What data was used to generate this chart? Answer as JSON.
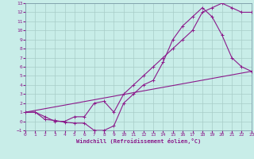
{
  "background_color": "#c8ede8",
  "grid_color": "#a8ccc8",
  "line_color": "#8b1a8b",
  "xlabel": "Windchill (Refroidissement éolien,°C)",
  "xlim": [
    0,
    23
  ],
  "ylim": [
    -1,
    13
  ],
  "xticks": [
    0,
    1,
    2,
    3,
    4,
    5,
    6,
    7,
    8,
    9,
    10,
    11,
    12,
    13,
    14,
    15,
    16,
    17,
    18,
    19,
    20,
    21,
    22,
    23
  ],
  "yticks": [
    -1,
    0,
    1,
    2,
    3,
    4,
    5,
    6,
    7,
    8,
    9,
    10,
    11,
    12,
    13
  ],
  "line1_x": [
    0,
    1,
    2,
    3,
    4,
    5,
    6,
    7,
    8,
    9,
    10,
    11,
    12,
    13,
    14,
    15,
    16,
    17,
    18,
    19,
    20,
    21,
    22,
    23
  ],
  "line1_y": [
    1.0,
    1.0,
    0.2,
    0.1,
    -0.1,
    -0.2,
    -0.2,
    -1.0,
    -1.0,
    -0.5,
    2.0,
    3.0,
    4.0,
    4.5,
    6.5,
    9.0,
    10.5,
    11.5,
    12.5,
    11.5,
    9.5,
    7.0,
    6.0,
    5.5
  ],
  "line2_x": [
    0,
    23
  ],
  "line2_y": [
    1.0,
    5.5
  ],
  "line3_x": [
    0,
    1,
    2,
    3,
    4,
    5,
    6,
    7,
    8,
    9,
    10,
    11,
    12,
    13,
    14,
    15,
    16,
    17,
    18,
    19,
    20,
    21,
    22,
    23
  ],
  "line3_y": [
    1.0,
    1.0,
    0.5,
    0.0,
    0.0,
    0.5,
    0.5,
    2.0,
    2.2,
    1.0,
    3.0,
    4.0,
    5.0,
    6.0,
    7.0,
    8.0,
    9.0,
    10.0,
    12.0,
    12.5,
    13.0,
    12.5,
    12.0,
    12.0
  ]
}
